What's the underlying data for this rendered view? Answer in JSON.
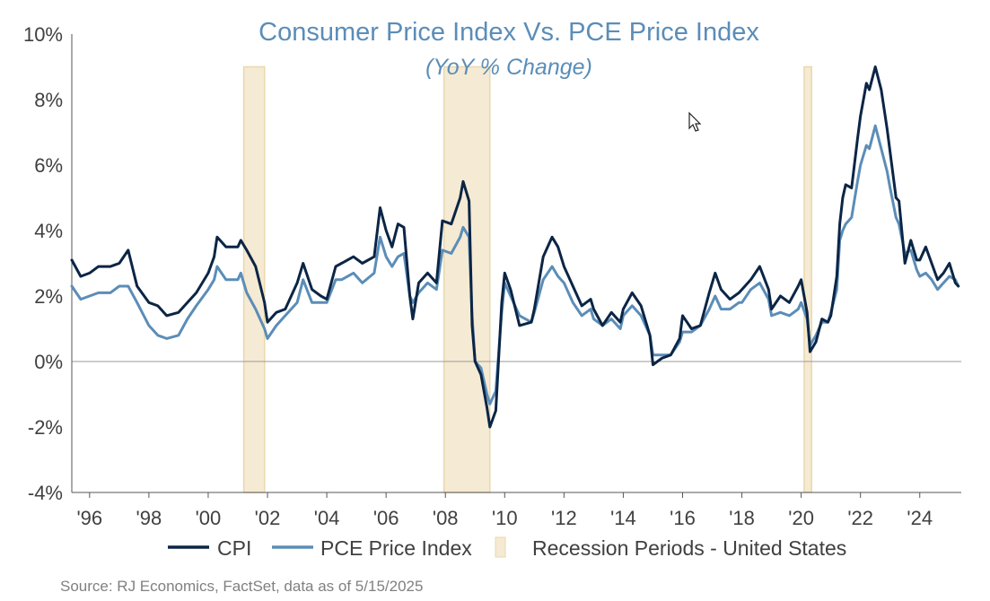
{
  "chart_data": {
    "type": "line",
    "title": "Consumer Price Index Vs. PCE Price Index",
    "subtitle": "(YoY % Change)",
    "source": "Source: RJ Economics, FactSet, data as of 5/15/2025",
    "xlim": [
      1995.4,
      2025.4
    ],
    "ylim": [
      -4,
      10
    ],
    "yticks": [
      -4,
      -2,
      0,
      2,
      4,
      6,
      8,
      10
    ],
    "ytick_labels": [
      "-4%",
      "-2%",
      "0%",
      "2%",
      "4%",
      "6%",
      "8%",
      "10%"
    ],
    "xticks": [
      1996,
      1998,
      2000,
      2002,
      2004,
      2006,
      2008,
      2010,
      2012,
      2014,
      2016,
      2018,
      2020,
      2022,
      2024
    ],
    "xtick_labels": [
      "'96",
      "'98",
      "'00",
      "'02",
      "'04",
      "'06",
      "'08",
      "'10",
      "'12",
      "'14",
      "'16",
      "'18",
      "'20",
      "'22",
      "'24"
    ],
    "zero_line": true,
    "grid": false,
    "legend_position": "bottom",
    "recessions": [
      {
        "start": 2001.2,
        "end": 2001.9
      },
      {
        "start": 2007.95,
        "end": 2009.5
      },
      {
        "start": 2020.1,
        "end": 2020.35
      }
    ],
    "series": [
      {
        "name": "CPI",
        "color": "#0b2545",
        "points": [
          [
            1995.4,
            3.1
          ],
          [
            1995.7,
            2.6
          ],
          [
            1996.0,
            2.7
          ],
          [
            1996.3,
            2.9
          ],
          [
            1996.7,
            2.9
          ],
          [
            1997.0,
            3.0
          ],
          [
            1997.3,
            3.4
          ],
          [
            1997.6,
            2.3
          ],
          [
            1998.0,
            1.8
          ],
          [
            1998.3,
            1.7
          ],
          [
            1998.6,
            1.4
          ],
          [
            1999.0,
            1.5
          ],
          [
            1999.3,
            1.8
          ],
          [
            1999.6,
            2.1
          ],
          [
            2000.0,
            2.7
          ],
          [
            2000.2,
            3.2
          ],
          [
            2000.3,
            3.8
          ],
          [
            2000.6,
            3.5
          ],
          [
            2001.0,
            3.5
          ],
          [
            2001.1,
            3.7
          ],
          [
            2001.3,
            3.4
          ],
          [
            2001.6,
            2.9
          ],
          [
            2001.9,
            1.8
          ],
          [
            2002.0,
            1.2
          ],
          [
            2002.3,
            1.5
          ],
          [
            2002.6,
            1.6
          ],
          [
            2003.0,
            2.4
          ],
          [
            2003.2,
            3.0
          ],
          [
            2003.5,
            2.2
          ],
          [
            2003.8,
            2.0
          ],
          [
            2004.0,
            1.9
          ],
          [
            2004.3,
            2.9
          ],
          [
            2004.5,
            3.0
          ],
          [
            2004.9,
            3.2
          ],
          [
            2005.2,
            3.0
          ],
          [
            2005.6,
            3.2
          ],
          [
            2005.8,
            4.7
          ],
          [
            2006.0,
            4.0
          ],
          [
            2006.2,
            3.5
          ],
          [
            2006.4,
            4.2
          ],
          [
            2006.6,
            4.1
          ],
          [
            2006.8,
            2.0
          ],
          [
            2006.9,
            1.3
          ],
          [
            2007.1,
            2.4
          ],
          [
            2007.4,
            2.7
          ],
          [
            2007.7,
            2.4
          ],
          [
            2007.9,
            4.3
          ],
          [
            2008.2,
            4.2
          ],
          [
            2008.5,
            5.0
          ],
          [
            2008.6,
            5.5
          ],
          [
            2008.8,
            4.9
          ],
          [
            2008.9,
            1.1
          ],
          [
            2009.0,
            0.0
          ],
          [
            2009.2,
            -0.4
          ],
          [
            2009.4,
            -1.4
          ],
          [
            2009.5,
            -2.0
          ],
          [
            2009.7,
            -1.5
          ],
          [
            2009.9,
            1.8
          ],
          [
            2010.0,
            2.7
          ],
          [
            2010.2,
            2.2
          ],
          [
            2010.5,
            1.1
          ],
          [
            2010.9,
            1.2
          ],
          [
            2011.0,
            1.6
          ],
          [
            2011.3,
            3.2
          ],
          [
            2011.6,
            3.8
          ],
          [
            2011.8,
            3.5
          ],
          [
            2012.0,
            2.9
          ],
          [
            2012.3,
            2.3
          ],
          [
            2012.6,
            1.7
          ],
          [
            2012.9,
            1.9
          ],
          [
            2013.0,
            1.6
          ],
          [
            2013.3,
            1.1
          ],
          [
            2013.6,
            1.5
          ],
          [
            2013.9,
            1.2
          ],
          [
            2014.0,
            1.6
          ],
          [
            2014.3,
            2.1
          ],
          [
            2014.6,
            1.7
          ],
          [
            2014.9,
            0.8
          ],
          [
            2015.0,
            -0.1
          ],
          [
            2015.3,
            0.1
          ],
          [
            2015.6,
            0.2
          ],
          [
            2015.9,
            0.7
          ],
          [
            2016.0,
            1.4
          ],
          [
            2016.3,
            1.0
          ],
          [
            2016.6,
            1.1
          ],
          [
            2016.9,
            2.1
          ],
          [
            2017.1,
            2.7
          ],
          [
            2017.3,
            2.2
          ],
          [
            2017.6,
            1.9
          ],
          [
            2017.9,
            2.1
          ],
          [
            2018.0,
            2.2
          ],
          [
            2018.3,
            2.5
          ],
          [
            2018.6,
            2.9
          ],
          [
            2018.9,
            2.2
          ],
          [
            2019.0,
            1.6
          ],
          [
            2019.3,
            2.0
          ],
          [
            2019.6,
            1.8
          ],
          [
            2019.9,
            2.3
          ],
          [
            2020.0,
            2.5
          ],
          [
            2020.2,
            1.5
          ],
          [
            2020.3,
            0.3
          ],
          [
            2020.5,
            0.6
          ],
          [
            2020.7,
            1.3
          ],
          [
            2020.9,
            1.2
          ],
          [
            2021.0,
            1.4
          ],
          [
            2021.2,
            2.6
          ],
          [
            2021.3,
            4.2
          ],
          [
            2021.4,
            5.0
          ],
          [
            2021.5,
            5.4
          ],
          [
            2021.7,
            5.3
          ],
          [
            2021.9,
            6.8
          ],
          [
            2022.0,
            7.5
          ],
          [
            2022.2,
            8.5
          ],
          [
            2022.3,
            8.3
          ],
          [
            2022.5,
            9.0
          ],
          [
            2022.7,
            8.3
          ],
          [
            2022.9,
            7.1
          ],
          [
            2023.0,
            6.4
          ],
          [
            2023.2,
            5.0
          ],
          [
            2023.3,
            4.9
          ],
          [
            2023.5,
            3.0
          ],
          [
            2023.7,
            3.7
          ],
          [
            2023.9,
            3.1
          ],
          [
            2024.0,
            3.1
          ],
          [
            2024.2,
            3.5
          ],
          [
            2024.4,
            3.0
          ],
          [
            2024.6,
            2.5
          ],
          [
            2024.8,
            2.7
          ],
          [
            2025.0,
            3.0
          ],
          [
            2025.2,
            2.4
          ],
          [
            2025.3,
            2.3
          ]
        ]
      },
      {
        "name": "PCE Price Index",
        "color": "#5b8db8",
        "points": [
          [
            1995.4,
            2.3
          ],
          [
            1995.7,
            1.9
          ],
          [
            1996.0,
            2.0
          ],
          [
            1996.3,
            2.1
          ],
          [
            1996.7,
            2.1
          ],
          [
            1997.0,
            2.3
          ],
          [
            1997.3,
            2.3
          ],
          [
            1997.6,
            1.8
          ],
          [
            1998.0,
            1.1
          ],
          [
            1998.3,
            0.8
          ],
          [
            1998.6,
            0.7
          ],
          [
            1999.0,
            0.8
          ],
          [
            1999.3,
            1.3
          ],
          [
            1999.6,
            1.7
          ],
          [
            2000.0,
            2.2
          ],
          [
            2000.2,
            2.5
          ],
          [
            2000.3,
            2.9
          ],
          [
            2000.6,
            2.5
          ],
          [
            2001.0,
            2.5
          ],
          [
            2001.1,
            2.7
          ],
          [
            2001.3,
            2.1
          ],
          [
            2001.6,
            1.6
          ],
          [
            2001.9,
            1.0
          ],
          [
            2002.0,
            0.7
          ],
          [
            2002.3,
            1.1
          ],
          [
            2002.6,
            1.4
          ],
          [
            2003.0,
            1.8
          ],
          [
            2003.2,
            2.5
          ],
          [
            2003.5,
            1.8
          ],
          [
            2003.8,
            1.8
          ],
          [
            2004.0,
            1.8
          ],
          [
            2004.3,
            2.5
          ],
          [
            2004.5,
            2.5
          ],
          [
            2004.9,
            2.7
          ],
          [
            2005.2,
            2.4
          ],
          [
            2005.6,
            2.7
          ],
          [
            2005.8,
            3.8
          ],
          [
            2006.0,
            3.2
          ],
          [
            2006.2,
            2.9
          ],
          [
            2006.4,
            3.2
          ],
          [
            2006.6,
            3.3
          ],
          [
            2006.8,
            2.0
          ],
          [
            2006.9,
            1.8
          ],
          [
            2007.1,
            2.1
          ],
          [
            2007.4,
            2.4
          ],
          [
            2007.7,
            2.2
          ],
          [
            2007.9,
            3.4
          ],
          [
            2008.2,
            3.3
          ],
          [
            2008.5,
            3.8
          ],
          [
            2008.6,
            4.1
          ],
          [
            2008.8,
            3.8
          ],
          [
            2008.9,
            1.4
          ],
          [
            2009.0,
            0.0
          ],
          [
            2009.2,
            -0.2
          ],
          [
            2009.4,
            -1.0
          ],
          [
            2009.5,
            -1.3
          ],
          [
            2009.7,
            -0.9
          ],
          [
            2009.9,
            1.5
          ],
          [
            2010.0,
            2.4
          ],
          [
            2010.2,
            2.0
          ],
          [
            2010.5,
            1.4
          ],
          [
            2010.9,
            1.2
          ],
          [
            2011.0,
            1.5
          ],
          [
            2011.3,
            2.5
          ],
          [
            2011.6,
            2.9
          ],
          [
            2011.8,
            2.6
          ],
          [
            2012.0,
            2.4
          ],
          [
            2012.3,
            1.8
          ],
          [
            2012.6,
            1.4
          ],
          [
            2012.9,
            1.6
          ],
          [
            2013.0,
            1.3
          ],
          [
            2013.3,
            1.1
          ],
          [
            2013.6,
            1.3
          ],
          [
            2013.9,
            1.0
          ],
          [
            2014.0,
            1.4
          ],
          [
            2014.3,
            1.7
          ],
          [
            2014.6,
            1.4
          ],
          [
            2014.9,
            0.8
          ],
          [
            2015.0,
            0.2
          ],
          [
            2015.3,
            0.2
          ],
          [
            2015.6,
            0.2
          ],
          [
            2015.9,
            0.6
          ],
          [
            2016.0,
            0.9
          ],
          [
            2016.3,
            0.9
          ],
          [
            2016.6,
            1.1
          ],
          [
            2016.9,
            1.6
          ],
          [
            2017.1,
            2.0
          ],
          [
            2017.3,
            1.6
          ],
          [
            2017.6,
            1.6
          ],
          [
            2017.9,
            1.8
          ],
          [
            2018.0,
            1.8
          ],
          [
            2018.3,
            2.2
          ],
          [
            2018.6,
            2.4
          ],
          [
            2018.9,
            1.9
          ],
          [
            2019.0,
            1.4
          ],
          [
            2019.3,
            1.5
          ],
          [
            2019.6,
            1.4
          ],
          [
            2019.9,
            1.6
          ],
          [
            2020.0,
            1.8
          ],
          [
            2020.2,
            1.3
          ],
          [
            2020.3,
            0.5
          ],
          [
            2020.5,
            0.8
          ],
          [
            2020.7,
            1.2
          ],
          [
            2020.9,
            1.2
          ],
          [
            2021.0,
            1.5
          ],
          [
            2021.2,
            2.2
          ],
          [
            2021.3,
            3.7
          ],
          [
            2021.4,
            4.0
          ],
          [
            2021.5,
            4.2
          ],
          [
            2021.7,
            4.4
          ],
          [
            2021.9,
            5.5
          ],
          [
            2022.0,
            6.0
          ],
          [
            2022.2,
            6.6
          ],
          [
            2022.3,
            6.5
          ],
          [
            2022.5,
            7.2
          ],
          [
            2022.7,
            6.5
          ],
          [
            2022.9,
            5.8
          ],
          [
            2023.0,
            5.3
          ],
          [
            2023.2,
            4.4
          ],
          [
            2023.3,
            4.2
          ],
          [
            2023.5,
            3.3
          ],
          [
            2023.7,
            3.4
          ],
          [
            2023.9,
            2.8
          ],
          [
            2024.0,
            2.6
          ],
          [
            2024.2,
            2.7
          ],
          [
            2024.4,
            2.5
          ],
          [
            2024.6,
            2.2
          ],
          [
            2024.8,
            2.4
          ],
          [
            2025.0,
            2.6
          ],
          [
            2025.2,
            2.5
          ],
          [
            2025.3,
            2.3
          ]
        ]
      }
    ],
    "legend": [
      {
        "label": "CPI",
        "type": "line",
        "color": "#0b2545"
      },
      {
        "label": "PCE Price Index",
        "type": "line",
        "color": "#5b8db8"
      },
      {
        "label": "Recession Periods - United States",
        "type": "box",
        "color": "#f5ead3"
      }
    ],
    "colors": {
      "title": "#5b8db8",
      "axis": "#555555",
      "zero_line": "#999999",
      "recession_fill": "#f5ead3",
      "recession_edge": "#ead8ad"
    }
  },
  "cursor_icon": "mouse-pointer-icon"
}
